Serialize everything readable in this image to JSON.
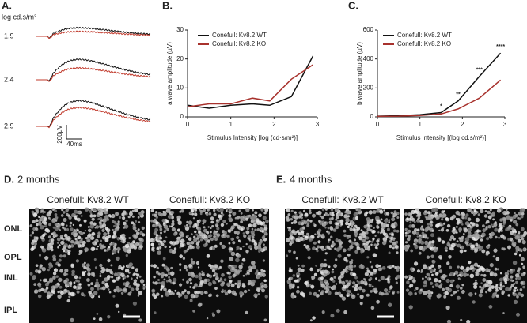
{
  "panel_a": {
    "label": "A.",
    "unit": "log cd.s/m²",
    "intensities": [
      "1.9",
      "2.4",
      "2.9"
    ],
    "scale_y": "200µV",
    "scale_x": "40ms"
  },
  "chart_data": [
    {
      "type": "line",
      "panel_label": "B.",
      "y_label": "a wave amplitude (µV)",
      "x_label": "Stimulus Intensity [log (cd·s/m²)]",
      "x": [
        0,
        0.5,
        1,
        1.5,
        1.9,
        2.4,
        2.9
      ],
      "xlim": [
        0,
        3
      ],
      "xticks": [
        0,
        1,
        2,
        3
      ],
      "ylim": [
        0,
        30
      ],
      "yticks": [
        0,
        10,
        20,
        30
      ],
      "series": [
        {
          "name": "Conefull: Kv8.2 WT",
          "color": "#111111",
          "values": [
            4,
            3,
            4,
            4.5,
            4,
            7,
            21
          ]
        },
        {
          "name": "Conefull: Kv8.2 KO",
          "color": "#a8322d",
          "values": [
            3.5,
            4.5,
            4.5,
            6.5,
            5.5,
            13,
            18
          ]
        }
      ]
    },
    {
      "type": "line",
      "panel_label": "C.",
      "y_label": "b wave amplitude (µV)",
      "x_label": "Stimulus intensity [(log cd.s/m²)]",
      "x": [
        0,
        0.5,
        1,
        1.5,
        1.9,
        2.4,
        2.9
      ],
      "xlim": [
        0,
        3
      ],
      "xticks": [
        0,
        1,
        2,
        3
      ],
      "ylim": [
        0,
        600
      ],
      "yticks": [
        0,
        200,
        400,
        600
      ],
      "series": [
        {
          "name": "Conefull: Kv8.2 WT",
          "color": "#111111",
          "values": [
            5,
            8,
            15,
            30,
            110,
            280,
            440
          ]
        },
        {
          "name": "Conefull: Kv8.2 KO",
          "color": "#a8322d",
          "values": [
            3,
            5,
            10,
            20,
            55,
            130,
            255
          ]
        }
      ],
      "annotations": [
        "*",
        "**",
        "***",
        "****"
      ]
    }
  ],
  "histology": [
    {
      "label": "D.",
      "title": "2 months",
      "columns": [
        "Conefull: Kv8.2 WT",
        "Conefull: Kv8.2 KO"
      ]
    },
    {
      "label": "E.",
      "title": "4 months",
      "columns": [
        "Conefull: Kv8.2 WT",
        "Conefull: Kv8.2 KO"
      ]
    }
  ],
  "layers": [
    "ONL",
    "OPL",
    "INL",
    "IPL"
  ]
}
